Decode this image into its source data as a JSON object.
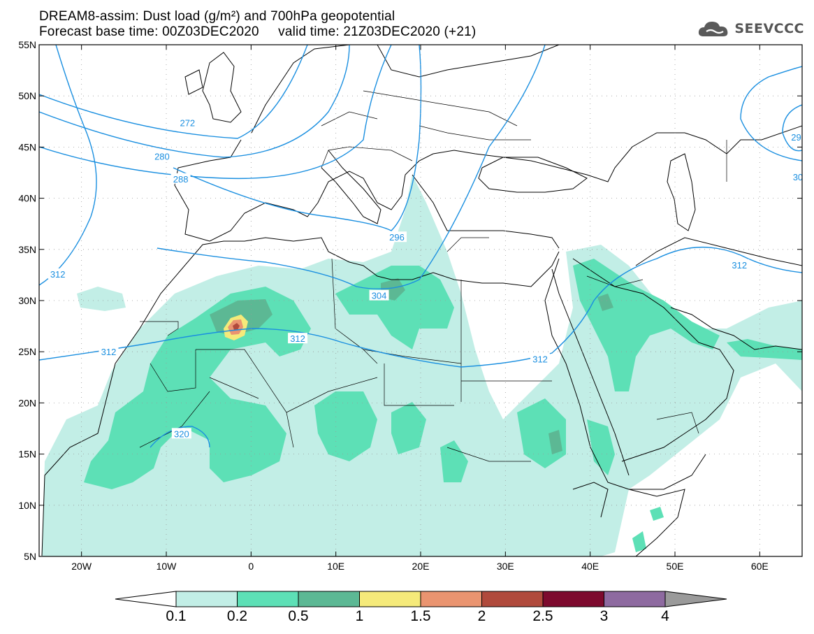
{
  "header": {
    "title_line1": "DREAM8-assim: Dust load (g/m²) and 700hPa geopotential",
    "title_line2": "Forecast base time: 00Z03DEC2020     valid time: 21Z03DEC2020 (+21)"
  },
  "logo": {
    "icon": "cloud-icon",
    "text": "SEEVCCC"
  },
  "map": {
    "lon_range": [
      -25,
      65
    ],
    "lat_range": [
      5,
      55
    ],
    "lon_ticks": [
      {
        "value": -20,
        "label": "20W"
      },
      {
        "value": -10,
        "label": "10W"
      },
      {
        "value": 0,
        "label": "0"
      },
      {
        "value": 10,
        "label": "10E"
      },
      {
        "value": 20,
        "label": "20E"
      },
      {
        "value": 30,
        "label": "30E"
      },
      {
        "value": 40,
        "label": "40E"
      },
      {
        "value": 50,
        "label": "50E"
      },
      {
        "value": 60,
        "label": "60E"
      }
    ],
    "lat_ticks": [
      {
        "value": 55,
        "label": "55N"
      },
      {
        "value": 50,
        "label": "50N"
      },
      {
        "value": 45,
        "label": "45N"
      },
      {
        "value": 40,
        "label": "40N"
      },
      {
        "value": 35,
        "label": "35N"
      },
      {
        "value": 30,
        "label": "30N"
      },
      {
        "value": 25,
        "label": "25N"
      },
      {
        "value": 20,
        "label": "20N"
      },
      {
        "value": 15,
        "label": "15N"
      },
      {
        "value": 10,
        "label": "10N"
      },
      {
        "value": 5,
        "label": "5N"
      }
    ],
    "grid": true,
    "contour_color": "#1a8fe0",
    "contours": [
      {
        "label": "272",
        "label_lon": -7.5,
        "label_lat": 47.4
      },
      {
        "label": "280",
        "label_lon": -10.5,
        "label_lat": 44.1
      },
      {
        "label": "288",
        "label_lon": -8.3,
        "label_lat": 41.9
      },
      {
        "label": "296",
        "label_lon": 17.2,
        "label_lat": 36.2
      },
      {
        "label": "304",
        "label_lon": 15.1,
        "label_lat": 30.5
      },
      {
        "label": "312",
        "label_lon": 5.5,
        "label_lat": 26.3
      },
      {
        "label": "312",
        "label_lon": -16.8,
        "label_lat": 25.0
      },
      {
        "label": "312",
        "label_lon": -22.8,
        "label_lat": 32.6
      },
      {
        "label": "312",
        "label_lon": 34.1,
        "label_lat": 24.3
      },
      {
        "label": "312",
        "label_lon": 57.6,
        "label_lat": 33.5
      },
      {
        "label": "320",
        "label_lon": -8.2,
        "label_lat": 17.0
      },
      {
        "label": "29",
        "label_lon": 64.3,
        "label_lat": 46.0
      },
      {
        "label": "30",
        "label_lon": 64.5,
        "label_lat": 42.1
      }
    ]
  },
  "colorbar": {
    "levels": [
      "0.1",
      "0.2",
      "0.5",
      "1",
      "1.5",
      "2",
      "2.5",
      "3",
      "4"
    ],
    "colors": [
      "#c2eee6",
      "#5de0b6",
      "#5cb894",
      "#f5ea7a",
      "#ea9470",
      "#b04a3c",
      "#7d0a2e",
      "#8e6aa0"
    ],
    "under_color": "#ffffff",
    "over_color": "#9a9a9a"
  },
  "dust_colors": {
    "light": "#c2eee6",
    "medium": "#5de0b6",
    "dark": "#5cb894",
    "yellow": "#f5ea7a",
    "orange": "#ea9470",
    "red": "#b04a3c"
  }
}
